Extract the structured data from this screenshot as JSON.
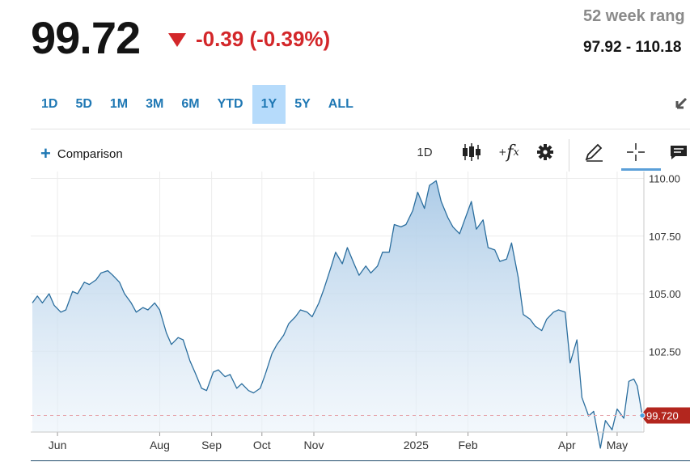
{
  "quote": {
    "price": "99.72",
    "change": "-0.39 (-0.39%)",
    "range_label": "52 week rang",
    "range_value": "97.92 - 110.18"
  },
  "time_ranges": [
    {
      "label": "1D",
      "active": false
    },
    {
      "label": "5D",
      "active": false
    },
    {
      "label": "1M",
      "active": false
    },
    {
      "label": "3M",
      "active": false
    },
    {
      "label": "6M",
      "active": false
    },
    {
      "label": "YTD",
      "active": false
    },
    {
      "label": "1Y",
      "active": true
    },
    {
      "label": "5Y",
      "active": false
    },
    {
      "label": "ALL",
      "active": false
    }
  ],
  "toolbar": {
    "comparison_label": "Comparison",
    "interval_label": "1D",
    "icons": [
      "candlestick-icon",
      "function-fx-icon",
      "gear-icon",
      "pencil-icon",
      "crosshair-icon",
      "comment-icon",
      "expand-icon"
    ]
  },
  "chart_data": {
    "type": "area",
    "title": "",
    "xlabel": "",
    "ylabel": "",
    "ylim": [
      99.0,
      110.3
    ],
    "y_ticks": [
      110.0,
      107.5,
      105.0,
      102.5
    ],
    "y_tick_labels": [
      "110.00",
      "107.50",
      "105.00",
      "102.50"
    ],
    "x_range": [
      "2024-05-17",
      "2025-05-16"
    ],
    "x_ticks": [
      {
        "date": "2024-06-01",
        "label": "Jun"
      },
      {
        "date": "2024-08-01",
        "label": "Aug"
      },
      {
        "date": "2024-09-01",
        "label": "Sep"
      },
      {
        "date": "2024-10-01",
        "label": "Oct"
      },
      {
        "date": "2024-11-01",
        "label": "Nov"
      },
      {
        "date": "2025-01-01",
        "label": "2025"
      },
      {
        "date": "2025-02-01",
        "label": "Feb"
      },
      {
        "date": "2025-04-01",
        "label": "Apr"
      },
      {
        "date": "2025-05-01",
        "label": "May"
      }
    ],
    "last_value_label": "99.720",
    "previous_close": 99.72,
    "series": [
      {
        "color": "#2b6e9e",
        "points": [
          [
            "2024-05-17",
            104.6
          ],
          [
            "2024-05-20",
            104.9
          ],
          [
            "2024-05-23",
            104.6
          ],
          [
            "2024-05-27",
            105.0
          ],
          [
            "2024-05-30",
            104.5
          ],
          [
            "2024-06-03",
            104.2
          ],
          [
            "2024-06-06",
            104.3
          ],
          [
            "2024-06-10",
            105.1
          ],
          [
            "2024-06-13",
            105.0
          ],
          [
            "2024-06-17",
            105.5
          ],
          [
            "2024-06-20",
            105.4
          ],
          [
            "2024-06-24",
            105.6
          ],
          [
            "2024-06-27",
            105.9
          ],
          [
            "2024-07-01",
            106.0
          ],
          [
            "2024-07-04",
            105.8
          ],
          [
            "2024-07-08",
            105.5
          ],
          [
            "2024-07-11",
            105.0
          ],
          [
            "2024-07-15",
            104.6
          ],
          [
            "2024-07-18",
            104.2
          ],
          [
            "2024-07-22",
            104.4
          ],
          [
            "2024-07-25",
            104.3
          ],
          [
            "2024-07-29",
            104.6
          ],
          [
            "2024-08-01",
            104.3
          ],
          [
            "2024-08-05",
            103.3
          ],
          [
            "2024-08-08",
            102.8
          ],
          [
            "2024-08-12",
            103.1
          ],
          [
            "2024-08-15",
            103.0
          ],
          [
            "2024-08-19",
            102.1
          ],
          [
            "2024-08-22",
            101.6
          ],
          [
            "2024-08-26",
            100.9
          ],
          [
            "2024-08-29",
            100.8
          ],
          [
            "2024-09-02",
            101.6
          ],
          [
            "2024-09-05",
            101.7
          ],
          [
            "2024-09-09",
            101.4
          ],
          [
            "2024-09-12",
            101.5
          ],
          [
            "2024-09-16",
            100.9
          ],
          [
            "2024-09-19",
            101.1
          ],
          [
            "2024-09-23",
            100.8
          ],
          [
            "2024-09-26",
            100.7
          ],
          [
            "2024-09-30",
            100.9
          ],
          [
            "2024-10-03",
            101.5
          ],
          [
            "2024-10-07",
            102.4
          ],
          [
            "2024-10-10",
            102.8
          ],
          [
            "2024-10-14",
            103.2
          ],
          [
            "2024-10-17",
            103.7
          ],
          [
            "2024-10-21",
            104.0
          ],
          [
            "2024-10-24",
            104.3
          ],
          [
            "2024-10-28",
            104.2
          ],
          [
            "2024-10-31",
            104.0
          ],
          [
            "2024-11-04",
            104.6
          ],
          [
            "2024-11-07",
            105.2
          ],
          [
            "2024-11-11",
            106.1
          ],
          [
            "2024-11-14",
            106.8
          ],
          [
            "2024-11-18",
            106.3
          ],
          [
            "2024-11-21",
            107.0
          ],
          [
            "2024-11-25",
            106.3
          ],
          [
            "2024-11-28",
            105.8
          ],
          [
            "2024-12-02",
            106.2
          ],
          [
            "2024-12-05",
            105.9
          ],
          [
            "2024-12-09",
            106.2
          ],
          [
            "2024-12-12",
            106.8
          ],
          [
            "2024-12-16",
            106.8
          ],
          [
            "2024-12-19",
            108.0
          ],
          [
            "2024-12-23",
            107.9
          ],
          [
            "2024-12-26",
            108.0
          ],
          [
            "2024-12-30",
            108.6
          ],
          [
            "2025-01-02",
            109.4
          ],
          [
            "2025-01-06",
            108.7
          ],
          [
            "2025-01-09",
            109.7
          ],
          [
            "2025-01-13",
            109.9
          ],
          [
            "2025-01-16",
            109.0
          ],
          [
            "2025-01-20",
            108.3
          ],
          [
            "2025-01-23",
            107.9
          ],
          [
            "2025-01-27",
            107.6
          ],
          [
            "2025-01-30",
            108.2
          ],
          [
            "2025-02-03",
            109.0
          ],
          [
            "2025-02-06",
            107.8
          ],
          [
            "2025-02-10",
            108.2
          ],
          [
            "2025-02-13",
            107.0
          ],
          [
            "2025-02-17",
            106.9
          ],
          [
            "2025-02-20",
            106.4
          ],
          [
            "2025-02-24",
            106.5
          ],
          [
            "2025-02-27",
            107.2
          ],
          [
            "2025-03-03",
            105.7
          ],
          [
            "2025-03-06",
            104.1
          ],
          [
            "2025-03-10",
            103.9
          ],
          [
            "2025-03-13",
            103.6
          ],
          [
            "2025-03-17",
            103.4
          ],
          [
            "2025-03-20",
            103.9
          ],
          [
            "2025-03-24",
            104.2
          ],
          [
            "2025-03-27",
            104.3
          ],
          [
            "2025-03-31",
            104.2
          ],
          [
            "2025-04-03",
            102.0
          ],
          [
            "2025-04-07",
            103.0
          ],
          [
            "2025-04-10",
            100.5
          ],
          [
            "2025-04-14",
            99.7
          ],
          [
            "2025-04-17",
            99.9
          ],
          [
            "2025-04-21",
            98.3
          ],
          [
            "2025-04-24",
            99.5
          ],
          [
            "2025-04-28",
            99.1
          ],
          [
            "2025-05-01",
            100.0
          ],
          [
            "2025-05-05",
            99.6
          ],
          [
            "2025-05-08",
            101.2
          ],
          [
            "2025-05-11",
            101.3
          ],
          [
            "2025-05-13",
            101.0
          ],
          [
            "2025-05-16",
            99.72
          ]
        ]
      }
    ]
  }
}
